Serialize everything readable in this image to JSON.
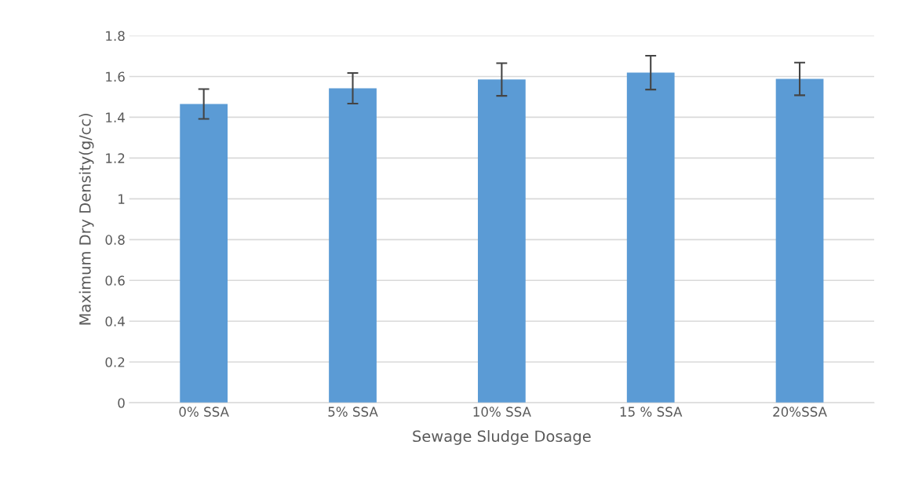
{
  "chart_data": {
    "type": "bar",
    "xlabel": "Sewage Sludge Dosage",
    "ylabel": "Maximum Dry Density(g/cc)",
    "categories": [
      "0% SSA",
      "5% SSA",
      "10% SSA",
      "15 % SSA",
      "20%SSA"
    ],
    "values": [
      1.465,
      1.542,
      1.585,
      1.619,
      1.588
    ],
    "errors": [
      0.073,
      0.075,
      0.08,
      0.083,
      0.08
    ],
    "color": "#5b9bd5",
    "ylim": [
      0,
      1.8
    ],
    "yticks": [
      0,
      0.2,
      0.4,
      0.6,
      0.8,
      1,
      1.2,
      1.4,
      1.6,
      1.8
    ],
    "grid": "y"
  }
}
